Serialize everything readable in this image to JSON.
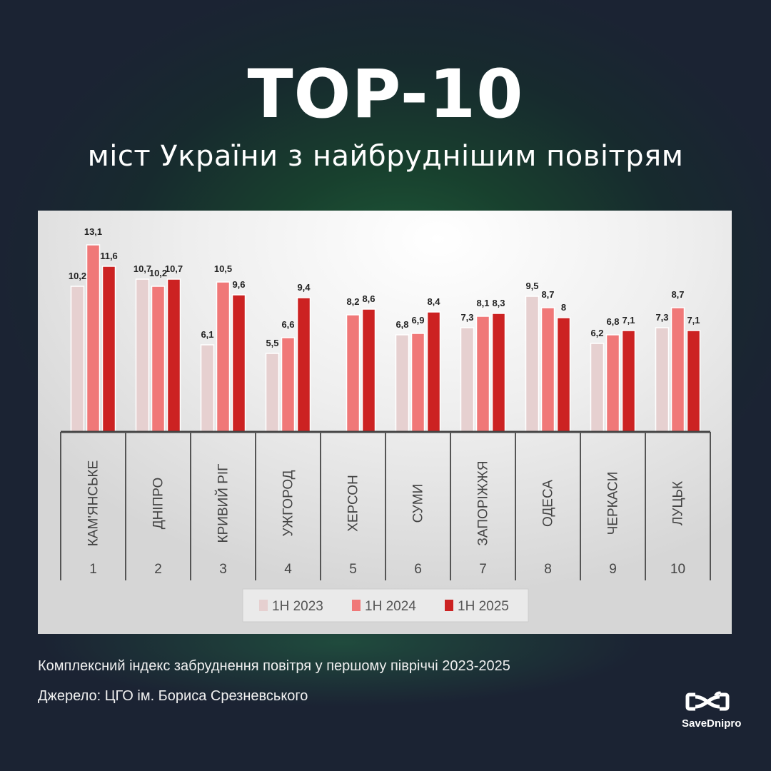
{
  "header": {
    "title": "TOP-10",
    "subtitle": "міст України з найбруднішим повітрям"
  },
  "chart_data": {
    "type": "bar",
    "categories": [
      "КАМ'ЯНСЬКЕ",
      "ДНІПРО",
      "КРИВИЙ РІГ",
      "УЖГОРОД",
      "ХЕРСОН",
      "СУМИ",
      "ЗАПОРІЖЖЯ",
      "ОДЕСА",
      "ЧЕРКАСИ",
      "ЛУЦЬК"
    ],
    "ranks": [
      "1",
      "2",
      "3",
      "4",
      "5",
      "6",
      "7",
      "8",
      "9",
      "10"
    ],
    "series": [
      {
        "name": "1H 2023",
        "color": "#e6d0d0",
        "values": [
          10.2,
          10.7,
          6.1,
          5.5,
          null,
          6.8,
          7.3,
          9.5,
          6.2,
          7.3
        ],
        "labels": [
          "10,2",
          "10,7",
          "6,1",
          "5,5",
          "",
          "6,8",
          "7,3",
          "9,5",
          "6,2",
          "7,3"
        ]
      },
      {
        "name": "1H 2024",
        "color": "#f07878",
        "values": [
          13.1,
          10.2,
          10.5,
          6.6,
          8.2,
          6.9,
          8.1,
          8.7,
          6.8,
          8.7
        ],
        "labels": [
          "13,1",
          "10,2",
          "10,5",
          "6,6",
          "8,2",
          "6,9",
          "8,1",
          "8,7",
          "6,8",
          "8,7"
        ]
      },
      {
        "name": "1H 2025",
        "color": "#cc2222",
        "values": [
          11.6,
          10.7,
          9.6,
          9.4,
          8.6,
          8.4,
          8.3,
          8,
          7.1,
          7.1
        ],
        "labels": [
          "11,6",
          "10,7",
          "9,6",
          "9,4",
          "8,6",
          "8,4",
          "8,3",
          "8",
          "7,1",
          "7,1"
        ]
      }
    ],
    "ylim": [
      0,
      14
    ],
    "grid": false,
    "legend": "bottom",
    "xlabel": "",
    "ylabel": ""
  },
  "footer": {
    "caption": "Комплексний індекс забруднення повітря у першому півріччі 2023-2025",
    "source": "Джерело: ЦГО ім. Бориса Срезневського"
  },
  "logo": {
    "name": "SaveDnipro"
  }
}
